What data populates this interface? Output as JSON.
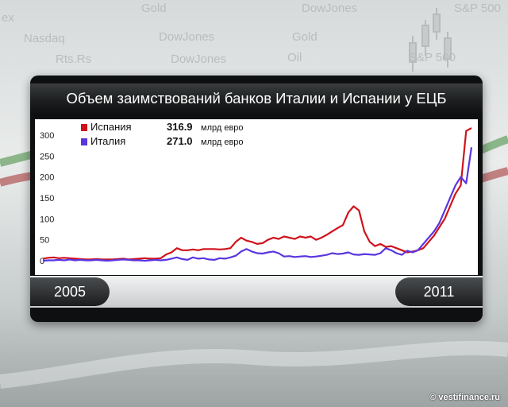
{
  "chart_data": {
    "type": "line",
    "title": "Объем заимствований банков Италии и Испании у ЕЦБ",
    "x_start_label": "2005",
    "x_end_label": "2011",
    "yticks": [
      "300",
      "250",
      "200",
      "150",
      "100",
      "50",
      "0"
    ],
    "ylim": [
      0,
      300
    ],
    "grid": false,
    "legend_position": "top-left",
    "series": [
      {
        "name": "Испания",
        "value_label": "316.9",
        "unit_label": "млрд евро",
        "color": "#d0121b",
        "values": [
          5,
          7,
          8,
          6,
          7,
          6,
          5,
          4,
          3,
          3,
          4,
          3,
          3,
          3,
          4,
          5,
          3,
          4,
          5,
          6,
          5,
          5,
          6,
          15,
          20,
          30,
          25,
          25,
          27,
          25,
          28,
          28,
          28,
          27,
          28,
          30,
          45,
          55,
          48,
          45,
          40,
          42,
          50,
          55,
          52,
          58,
          55,
          52,
          58,
          55,
          58,
          50,
          55,
          62,
          70,
          78,
          85,
          115,
          130,
          120,
          70,
          45,
          35,
          40,
          33,
          35,
          30,
          25,
          20,
          22,
          25,
          30,
          45,
          60,
          80,
          100,
          130,
          160,
          180,
          310,
          316.9
        ]
      },
      {
        "name": "Италия",
        "value_label": "271.0",
        "unit_label": "млрд евро",
        "color": "#5a35e0",
        "values": [
          0,
          1,
          1,
          2,
          1,
          3,
          1,
          2,
          1,
          1,
          2,
          1,
          0,
          1,
          2,
          3,
          2,
          1,
          1,
          0,
          1,
          2,
          1,
          2,
          5,
          8,
          4,
          2,
          8,
          5,
          6,
          3,
          2,
          6,
          5,
          8,
          12,
          22,
          28,
          22,
          18,
          17,
          20,
          22,
          18,
          10,
          11,
          9,
          10,
          11,
          9,
          10,
          12,
          14,
          18,
          16,
          17,
          20,
          15,
          14,
          16,
          15,
          14,
          18,
          30,
          25,
          18,
          14,
          24,
          20,
          25,
          40,
          55,
          70,
          90,
          120,
          150,
          180,
          200,
          185,
          271
        ]
      }
    ]
  },
  "background_words": [
    "ex",
    "Gold",
    "DowJones",
    "S&P 500",
    "Nasdaq",
    "DowJones",
    "Gold",
    "Rts.Rs",
    "DowJones",
    "Oil",
    "S&P 500"
  ],
  "credit": "© vestifinance.ru"
}
